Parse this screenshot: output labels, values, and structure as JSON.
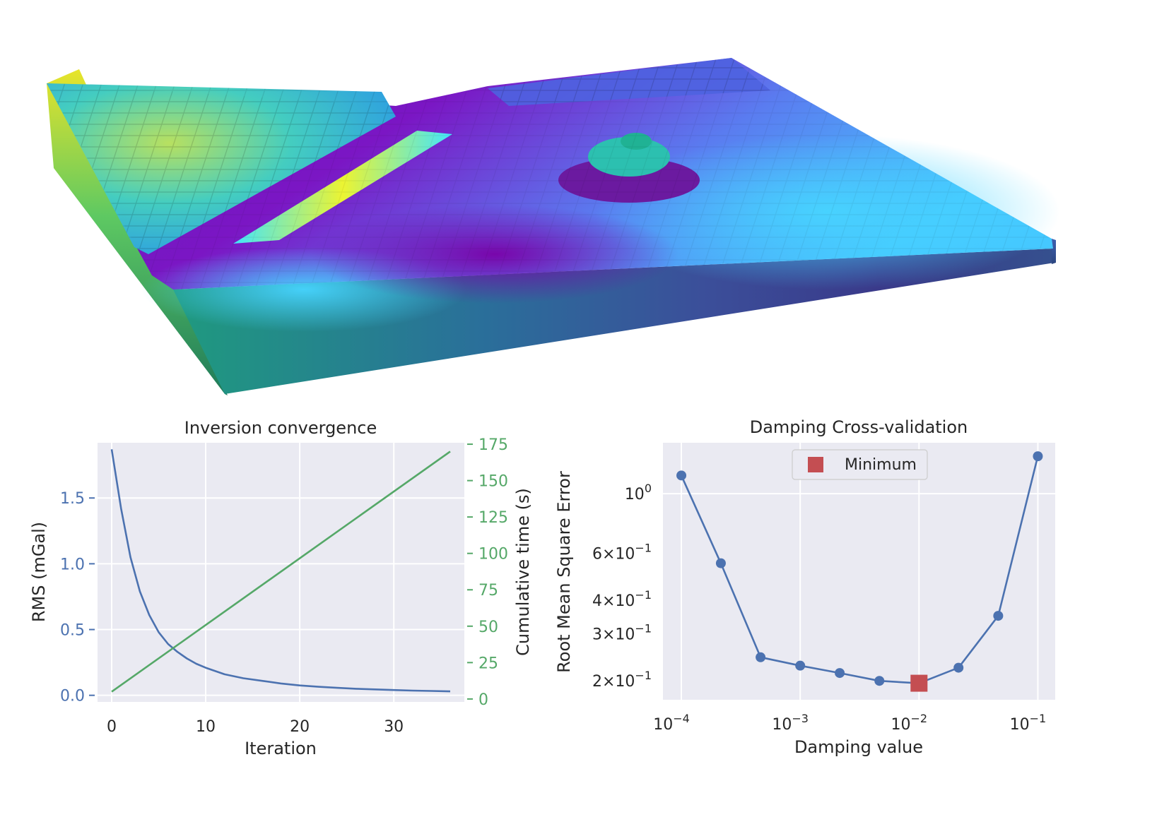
{
  "chart_data": [
    {
      "type": "3d-prism-model",
      "colormap": [
        "#440154",
        "#3b528b",
        "#21918c",
        "#5ec962",
        "#fde725"
      ],
      "top_colormap": [
        "#7a00a8",
        "#a000d8",
        "#5070ff",
        "#40e0ff",
        "#f0ff30"
      ]
    },
    {
      "type": "line",
      "title": "Inversion convergence",
      "xlabel": "Iteration",
      "xlim": [
        -1.5,
        37.5
      ],
      "xticks": [
        "0",
        "10",
        "20",
        "30"
      ],
      "y_left": {
        "label": "RMS (mGal)",
        "color": "#4c72b0",
        "lim": [
          -0.05,
          1.92
        ],
        "ticks": [
          "0.0",
          "0.5",
          "1.0",
          "1.5"
        ]
      },
      "y_right": {
        "label": "Cumulative time (s)",
        "color": "#55a868",
        "lim": [
          -2,
          176
        ],
        "ticks": [
          "0",
          "25",
          "50",
          "75",
          "100",
          "125",
          "150",
          "175"
        ]
      },
      "series": [
        {
          "axis": "left",
          "color": "#4c72b0",
          "x": [
            0,
            1,
            2,
            3,
            4,
            5,
            6,
            7,
            8,
            9,
            10,
            12,
            14,
            16,
            18,
            20,
            22,
            24,
            26,
            28,
            30,
            32,
            34,
            36
          ],
          "y": [
            1.87,
            1.42,
            1.05,
            0.79,
            0.61,
            0.48,
            0.39,
            0.33,
            0.28,
            0.24,
            0.21,
            0.16,
            0.13,
            0.11,
            0.09,
            0.075,
            0.065,
            0.057,
            0.05,
            0.045,
            0.04,
            0.036,
            0.033,
            0.03
          ]
        },
        {
          "axis": "right",
          "color": "#55a868",
          "x": [
            0,
            36
          ],
          "y": [
            5,
            170
          ]
        }
      ]
    },
    {
      "type": "scatter",
      "title": "Damping Cross-validation",
      "xlabel": "Damping value",
      "ylabel": "Root Mean Square Error",
      "xscale": "log",
      "yscale": "log",
      "xlim": [
        7e-05,
        0.14
      ],
      "ylim": [
        0.17,
        1.55
      ],
      "xticks": [
        {
          "base": "10",
          "exp": "−4"
        },
        {
          "base": "10",
          "exp": "−3"
        },
        {
          "base": "10",
          "exp": "−2"
        },
        {
          "base": "10",
          "exp": "−1"
        }
      ],
      "yticks": [
        {
          "mant": "2",
          "times": "×",
          "base": "10",
          "exp": "−1"
        },
        {
          "mant": "3",
          "times": "×",
          "base": "10",
          "exp": "−1"
        },
        {
          "mant": "4",
          "times": "×",
          "base": "10",
          "exp": "−1"
        },
        {
          "mant": "6",
          "times": "×",
          "base": "10",
          "exp": "−1"
        },
        {
          "mant": "",
          "times": "",
          "base": "10",
          "exp": "0"
        }
      ],
      "series": [
        {
          "color": "#4c72b0",
          "x": [
            0.0001,
            0.000215,
            0.000464,
            0.001,
            0.00215,
            0.00464,
            0.01,
            0.0215,
            0.0464,
            0.1
          ],
          "y": [
            1.17,
            0.55,
            0.245,
            0.228,
            0.214,
            0.2,
            0.196,
            0.224,
            0.35,
            1.38
          ]
        }
      ],
      "minimum": {
        "x": 0.01,
        "y": 0.196,
        "color": "#c44e52"
      },
      "legend": {
        "label": "Minimum",
        "position": "upper center"
      }
    }
  ]
}
